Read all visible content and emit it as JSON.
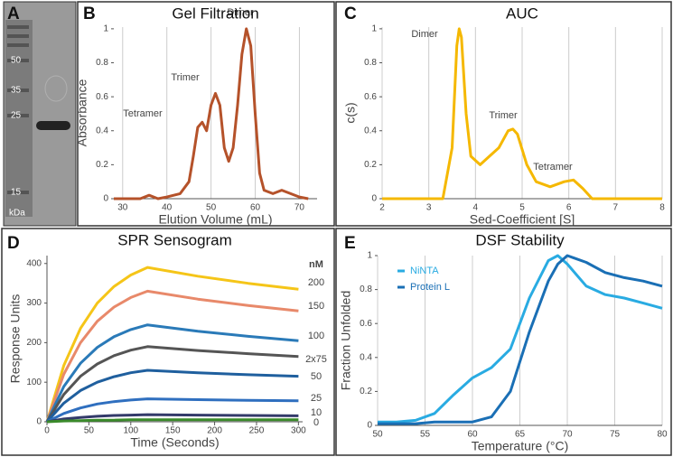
{
  "chart_data": [
    {
      "type": "gel",
      "panel": "A",
      "marker_labels": [
        50,
        35,
        25,
        15
      ],
      "unit": "kDa"
    },
    {
      "type": "line",
      "panel": "B",
      "title": "Gel Filtration",
      "x_label": "Elution Volume (mL)",
      "y_label": "Absorbance",
      "xlim": [
        28,
        74
      ],
      "xticks": [
        30,
        40,
        50,
        60,
        70
      ],
      "ylim": [
        0,
        1.01
      ],
      "yticks": [
        0,
        0.2,
        0.4,
        0.6,
        0.8,
        1
      ],
      "grid": "x",
      "x": [
        28,
        30,
        34,
        36,
        38,
        40,
        43,
        45,
        46,
        47,
        48,
        49,
        50,
        51,
        52,
        53,
        54,
        55,
        56,
        57,
        58,
        59,
        60,
        61,
        62,
        64,
        66,
        68,
        70,
        72
      ],
      "series": [
        {
          "name": "Gel Filtration",
          "color": "#b5522a",
          "values": [
            0,
            0,
            0,
            0.02,
            0,
            0.01,
            0.03,
            0.1,
            0.25,
            0.42,
            0.45,
            0.4,
            0.55,
            0.62,
            0.55,
            0.3,
            0.22,
            0.3,
            0.55,
            0.85,
            1.0,
            0.9,
            0.5,
            0.15,
            0.05,
            0.03,
            0.05,
            0.03,
            0.01,
            0
          ]
        }
      ],
      "annotations": [
        "Tetramer",
        "Trimer",
        "Dimer"
      ]
    },
    {
      "type": "line",
      "panel": "C",
      "title": "AUC",
      "x_label": "Sed-Coefficient [S]",
      "y_label": "c(s)",
      "xlim": [
        2,
        8
      ],
      "xticks": [
        2,
        3,
        4,
        5,
        6,
        7,
        8
      ],
      "ylim": [
        0,
        1.01
      ],
      "yticks": [
        0,
        0.2,
        0.4,
        0.6,
        0.8,
        1
      ],
      "grid": "x",
      "x": [
        2,
        3.3,
        3.5,
        3.6,
        3.65,
        3.7,
        3.8,
        3.9,
        4.1,
        4.3,
        4.5,
        4.7,
        4.8,
        4.9,
        5.1,
        5.3,
        5.6,
        5.9,
        6.1,
        6.3,
        6.5,
        8
      ],
      "series": [
        {
          "name": "AUC",
          "color": "#f5b800",
          "values": [
            0,
            0,
            0.3,
            0.9,
            1.0,
            0.95,
            0.5,
            0.25,
            0.2,
            0.25,
            0.3,
            0.4,
            0.41,
            0.38,
            0.2,
            0.1,
            0.07,
            0.1,
            0.11,
            0.06,
            0,
            0
          ]
        }
      ],
      "annotations": [
        "Dimer",
        "Trimer",
        "Tetramer"
      ]
    },
    {
      "type": "line",
      "panel": "D",
      "title": "SPR Sensogram",
      "x_label": "Time (Seconds)",
      "y_label": "Response Units",
      "xlim": [
        0,
        305
      ],
      "xticks": [
        0,
        50,
        100,
        150,
        200,
        250,
        300
      ],
      "ylim": [
        0,
        420
      ],
      "yticks": [
        0,
        100,
        200,
        300,
        400
      ],
      "end_labels": true,
      "unit_label": "nM",
      "x": [
        0,
        20,
        40,
        60,
        80,
        100,
        120,
        180,
        240,
        300
      ],
      "series": [
        {
          "name": "200",
          "color": "#f5c518",
          "values": [
            0,
            142,
            236,
            300,
            342,
            371,
            390,
            368,
            350,
            335
          ]
        },
        {
          "name": "150",
          "color": "#e8896a",
          "values": [
            0,
            120,
            200,
            254,
            290,
            314,
            330,
            310,
            294,
            280
          ]
        },
        {
          "name": "100",
          "color": "#2a7ab8",
          "values": [
            0,
            89,
            148,
            188,
            215,
            233,
            245,
            229,
            216,
            205
          ]
        },
        {
          "name": "2x75",
          "color": "#555555",
          "values": [
            0,
            69,
            115,
            146,
            167,
            181,
            190,
            180,
            172,
            165
          ]
        },
        {
          "name": "50",
          "color": "#1f5f9e",
          "values": [
            0,
            47,
            79,
            100,
            114,
            124,
            130,
            124,
            119,
            115
          ]
        },
        {
          "name": "25",
          "color": "#2f6fbf",
          "values": [
            0,
            21,
            35,
            45,
            51,
            55,
            58,
            56,
            54,
            53
          ]
        },
        {
          "name": "10",
          "color": "#333a6a",
          "values": [
            0,
            7,
            11,
            14,
            16,
            17,
            18,
            17,
            16,
            15
          ]
        },
        {
          "name": "0",
          "color": "#3a8a2a",
          "values": [
            0,
            2,
            3,
            4,
            4,
            5,
            5,
            5,
            5,
            5
          ]
        }
      ]
    },
    {
      "type": "line",
      "panel": "E",
      "title": "DSF Stability",
      "x_label": "Temperature (°C)",
      "y_label": "Fraction Unfolded",
      "xlim": [
        50,
        80
      ],
      "xticks": [
        50,
        55,
        60,
        65,
        70,
        75,
        80
      ],
      "ylim": [
        0,
        1
      ],
      "yticks": [
        0,
        0.2,
        0.4,
        0.6,
        0.8,
        1
      ],
      "grid": "x",
      "legend": "upper left",
      "x": [
        50,
        52,
        54,
        56,
        58,
        60,
        62,
        64,
        66,
        68,
        69,
        70,
        72,
        74,
        76,
        78,
        80
      ],
      "series": [
        {
          "name": "NiNTA",
          "color": "#29abe2",
          "values": [
            0.02,
            0.02,
            0.03,
            0.07,
            0.18,
            0.28,
            0.34,
            0.45,
            0.75,
            0.97,
            1,
            0.95,
            0.82,
            0.77,
            0.75,
            0.72,
            0.69
          ]
        },
        {
          "name": "Protein L",
          "color": "#1a6fb5",
          "values": [
            0.01,
            0.01,
            0.01,
            0.02,
            0.02,
            0.02,
            0.05,
            0.2,
            0.55,
            0.85,
            0.95,
            1,
            0.96,
            0.9,
            0.87,
            0.85,
            0.82
          ]
        }
      ]
    }
  ]
}
